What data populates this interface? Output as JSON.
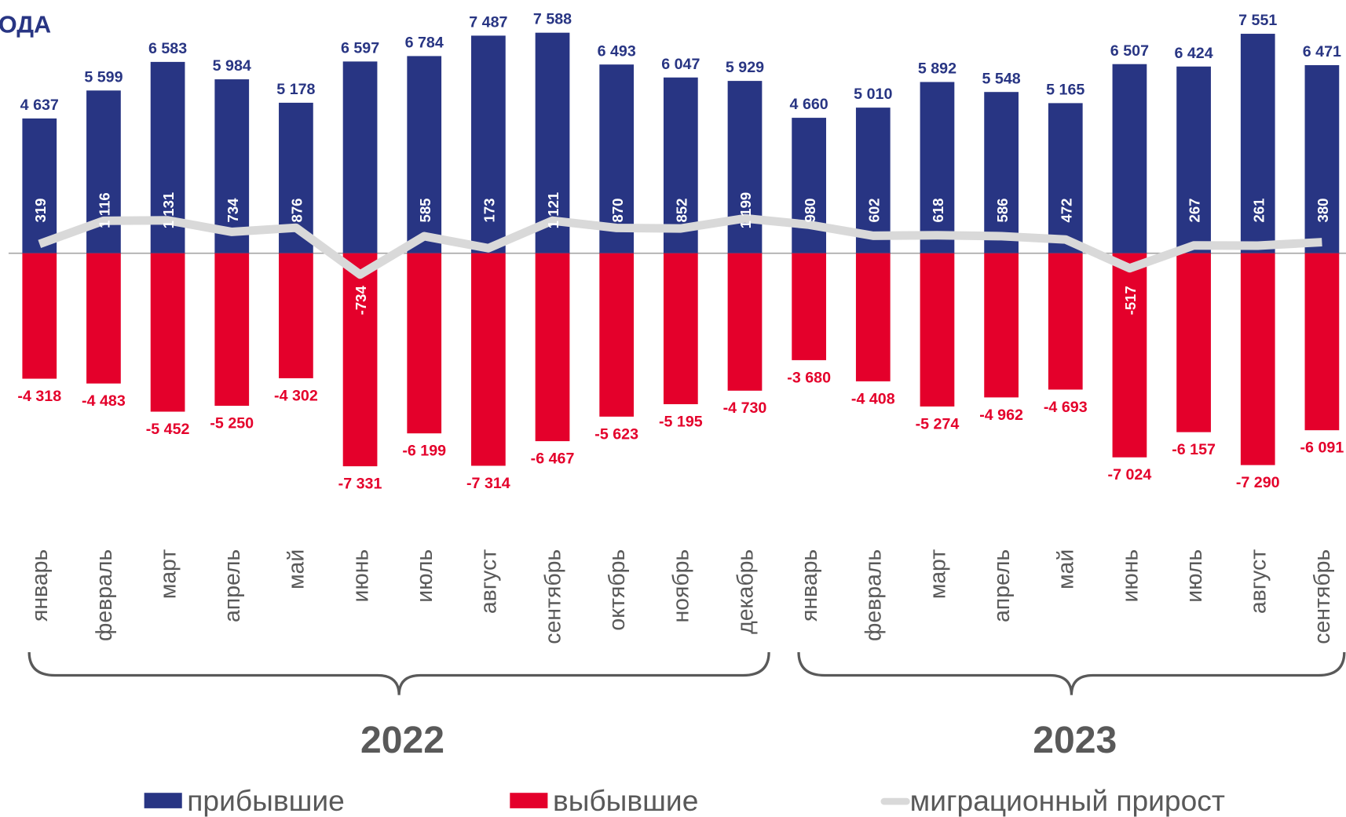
{
  "chart_data": {
    "type": "bar_line",
    "title": "ОДА",
    "categories": [
      "январь",
      "февраль",
      "март",
      "апрель",
      "май",
      "июнь",
      "июль",
      "август",
      "сентябрь",
      "октябрь",
      "ноябрь",
      "декабрь",
      "январь",
      "февраль",
      "март",
      "апрель",
      "май",
      "июнь",
      "июль",
      "август",
      "сентябрь"
    ],
    "groups": [
      "2022",
      "2023"
    ],
    "ylim": [
      -8000,
      8000
    ],
    "series": [
      {
        "name": "прибывшие",
        "type": "bar",
        "color": "#283583",
        "values": [
          4637,
          5599,
          6583,
          5984,
          5178,
          6597,
          6784,
          7487,
          7588,
          6493,
          6047,
          5929,
          4660,
          5010,
          5892,
          5548,
          5165,
          6507,
          6424,
          7551,
          6471
        ],
        "value_labels": [
          "4 637",
          "5 599",
          "6 583",
          "5 984",
          "5 178",
          "6 597",
          "6 784",
          "7 487",
          "7 588",
          "6 493",
          "6 047",
          "5 929",
          "4 660",
          "5 010",
          "5 892",
          "5 548",
          "5 165",
          "6 507",
          "6 424",
          "7 551",
          "6 471"
        ]
      },
      {
        "name": "выбывшие",
        "type": "bar",
        "color": "#e4002b",
        "values": [
          -4318,
          -4483,
          -5452,
          -5250,
          -4302,
          -7331,
          -6199,
          -7314,
          -6467,
          -5623,
          -5195,
          -4730,
          -3680,
          -4408,
          -5274,
          -4962,
          -4693,
          -7024,
          -6157,
          -7290,
          -6091
        ],
        "value_labels": [
          "-4 318",
          "-4 483",
          "-5 452",
          "-5 250",
          "-4 302",
          "-7 331",
          "-6 199",
          "-7 314",
          "-6 467",
          "-5 623",
          "-5 195",
          "-4 730",
          "-3 680",
          "-4 408",
          "-5 274",
          "-4 962",
          "-4 693",
          "-7 024",
          "-6 157",
          "-7 290",
          "-6 091"
        ]
      },
      {
        "name": "миграционный прирост",
        "type": "line",
        "color": "#d9d9d9",
        "values": [
          319,
          1116,
          1131,
          734,
          876,
          -734,
          585,
          173,
          1121,
          870,
          852,
          1199,
          980,
          602,
          618,
          586,
          472,
          -517,
          267,
          261,
          380
        ],
        "value_labels": [
          "319",
          "1 116",
          "1 131",
          "734",
          "876",
          "-734",
          "585",
          "173",
          "1 121",
          "870",
          "852",
          "1 199",
          "980",
          "602",
          "618",
          "586",
          "472",
          "-517",
          "267",
          "261",
          "380"
        ]
      }
    ]
  }
}
